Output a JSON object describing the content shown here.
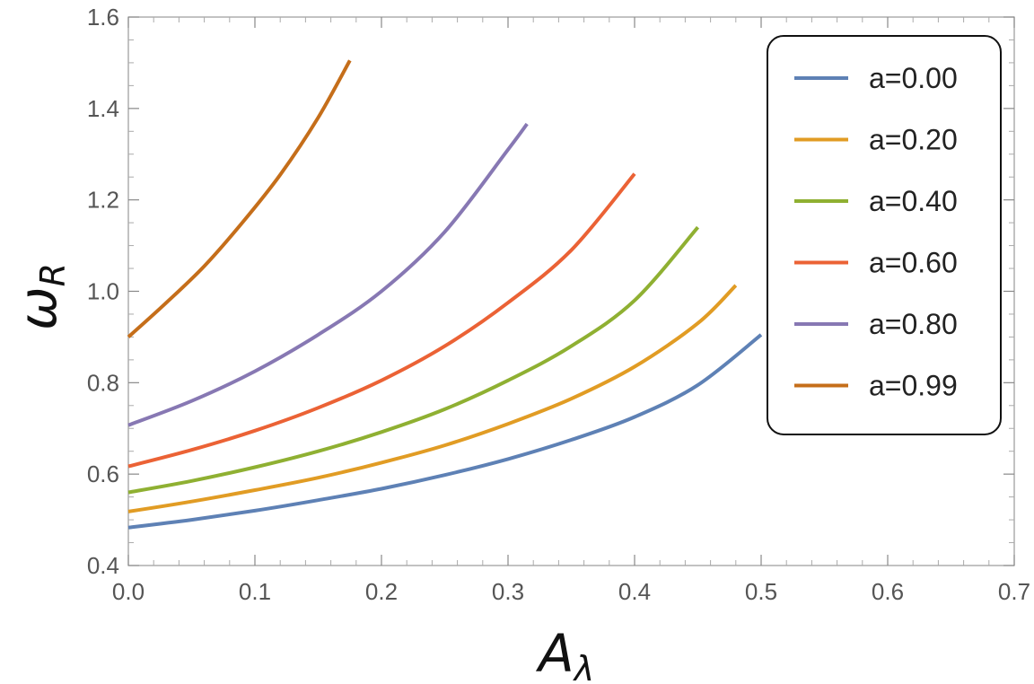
{
  "chart_data": {
    "type": "line",
    "xlabel": "A",
    "xlabel_sub": "λ",
    "ylabel": "ω",
    "ylabel_sub": "R",
    "xlim": [
      0.0,
      0.7
    ],
    "ylim": [
      0.4,
      1.6
    ],
    "x_ticks": [
      0.0,
      0.1,
      0.2,
      0.3,
      0.4,
      0.5,
      0.6,
      0.7
    ],
    "x_tick_labels": [
      "0.0",
      "0.1",
      "0.2",
      "0.3",
      "0.4",
      "0.5",
      "0.6",
      "0.7"
    ],
    "y_ticks": [
      0.4,
      0.6,
      0.8,
      1.0,
      1.2,
      1.4,
      1.6
    ],
    "y_tick_labels": [
      "0.4",
      "0.6",
      "0.8",
      "1.0",
      "1.2",
      "1.4",
      "1.6"
    ],
    "grid": false,
    "legend_position": "top-right",
    "series": [
      {
        "name": "a=0.00",
        "color": "#5E81B5",
        "x": [
          0.0,
          0.05,
          0.1,
          0.15,
          0.2,
          0.25,
          0.3,
          0.35,
          0.4,
          0.45,
          0.5
        ],
        "y": [
          0.483,
          0.5,
          0.52,
          0.543,
          0.568,
          0.598,
          0.633,
          0.675,
          0.725,
          0.795,
          0.905
        ]
      },
      {
        "name": "a=0.20",
        "color": "#E19C24",
        "x": [
          0.0,
          0.05,
          0.1,
          0.15,
          0.2,
          0.25,
          0.3,
          0.35,
          0.4,
          0.45,
          0.48
        ],
        "y": [
          0.518,
          0.54,
          0.565,
          0.592,
          0.625,
          0.663,
          0.71,
          0.765,
          0.835,
          0.93,
          1.013
        ]
      },
      {
        "name": "a=0.40",
        "color": "#8FB032",
        "x": [
          0.0,
          0.05,
          0.1,
          0.15,
          0.2,
          0.25,
          0.3,
          0.35,
          0.4,
          0.45
        ],
        "y": [
          0.56,
          0.585,
          0.615,
          0.65,
          0.692,
          0.742,
          0.805,
          0.88,
          0.98,
          1.14
        ]
      },
      {
        "name": "a=0.60",
        "color": "#EB6235",
        "x": [
          0.0,
          0.05,
          0.1,
          0.15,
          0.2,
          0.25,
          0.3,
          0.35,
          0.4
        ],
        "y": [
          0.617,
          0.653,
          0.695,
          0.745,
          0.805,
          0.88,
          0.975,
          1.09,
          1.257
        ]
      },
      {
        "name": "a=0.80",
        "color": "#8778B3",
        "x": [
          0.0,
          0.05,
          0.1,
          0.15,
          0.2,
          0.25,
          0.3,
          0.315
        ],
        "y": [
          0.707,
          0.76,
          0.825,
          0.905,
          1.0,
          1.13,
          1.31,
          1.366
        ]
      },
      {
        "name": "a=0.99",
        "color": "#C56E1A",
        "x": [
          0.0,
          0.03,
          0.06,
          0.09,
          0.12,
          0.15,
          0.175
        ],
        "y": [
          0.9,
          0.975,
          1.055,
          1.15,
          1.255,
          1.38,
          1.505
        ]
      }
    ]
  }
}
